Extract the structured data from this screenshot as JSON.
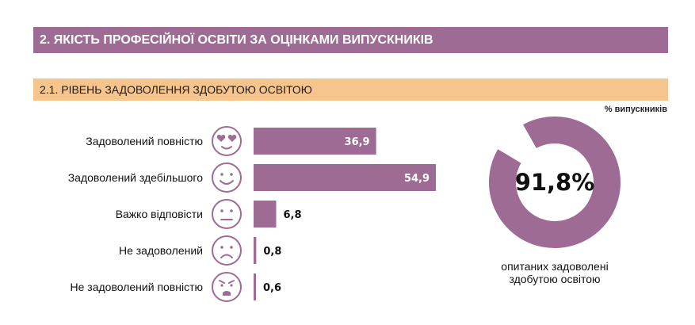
{
  "header": {
    "section_title": "2. ЯКІСТЬ ПРОФЕСІЙНОЇ ОСВІТИ ЗА ОЦІНКАМИ ВИПУСКНИКІВ",
    "subsection_title": "2.1. РІВЕНЬ ЗАДОВОЛЕННЯ ЗДОБУТОЮ ОСВІТОЮ",
    "unit": "% випускників"
  },
  "colors": {
    "section_bar": "#9e6b94",
    "subsection_bar": "#f6c58e",
    "bar": "#9e6b94",
    "donut_rest": "#ffffff"
  },
  "chart_data": [
    {
      "type": "bar",
      "orientation": "horizontal",
      "categories": [
        "Задоволений повністю",
        "Задоволений здебільшого",
        "Важко відповісти",
        "Не задоволений",
        "Не задоволений повністю"
      ],
      "values": [
        36.9,
        54.9,
        6.8,
        0.8,
        0.6
      ],
      "value_labels": [
        "36,9",
        "54,9",
        "6,8",
        "0,8",
        "0,6"
      ],
      "icons": [
        "heart-eyes-face-icon",
        "smiling-face-icon",
        "neutral-face-icon",
        "sad-face-icon",
        "angry-face-icon"
      ]
    },
    {
      "type": "pie",
      "style": "donut",
      "slices": [
        {
          "label": "опитаних задоволені здобутою освітою",
          "value": 91.8
        },
        {
          "label": "",
          "value": 8.2
        }
      ],
      "center_label": "91,8%",
      "caption_lines": [
        "опитаних задоволені",
        "здобутою освітою"
      ]
    }
  ]
}
